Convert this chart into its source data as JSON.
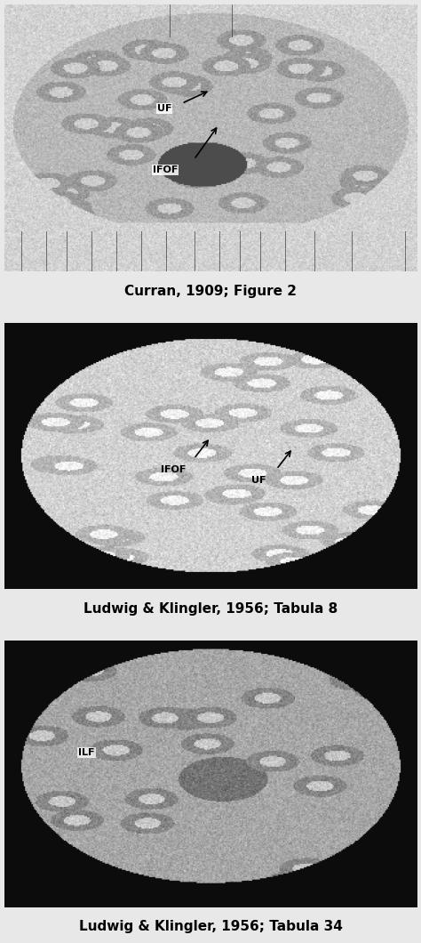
{
  "bg_color": "#e8e8e8",
  "caption_texts": [
    "Curran, 1909; Figure 2",
    "Ludwig & Klingler, 1956; Tabula 8",
    "Ludwig & Klingler, 1956; Tabula 34"
  ],
  "caption_fontsize": 11,
  "panel1_bg": "#c8c8c8",
  "panel2_bg": "#111111",
  "panel3_bg": "#111111",
  "label_fontsize": 8,
  "label_fontweight": "bold"
}
